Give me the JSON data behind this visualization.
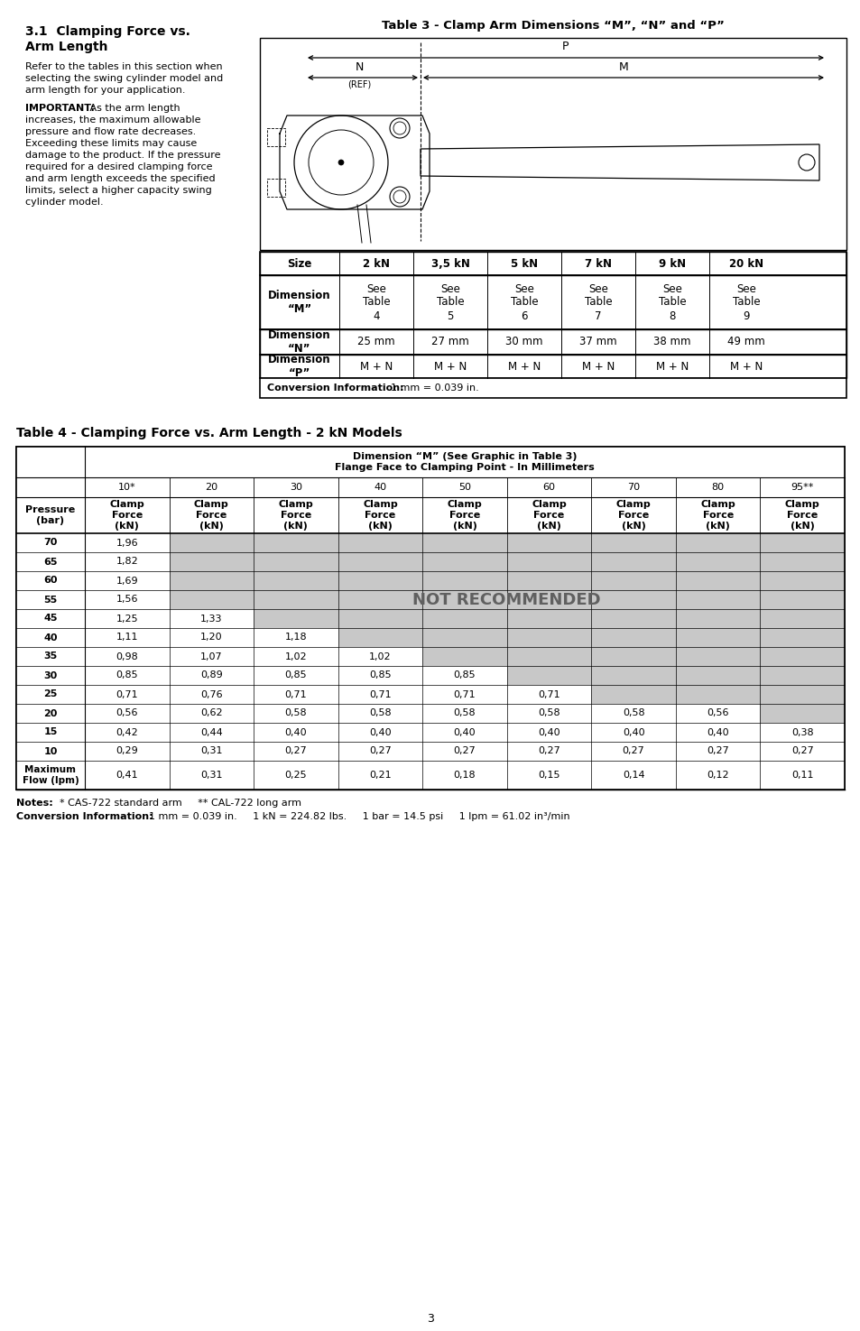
{
  "table3_title": "Table 3 - Clamp Arm Dimensions “M”, “N” and “P”",
  "table3_headers": [
    "Size",
    "2 kN",
    "3,5 kN",
    "5 kN",
    "7 kN",
    "9 kN",
    "20 kN"
  ],
  "table3_row1_label": "Dimension\n“M”",
  "table3_row1_data": [
    "See\nTable\n4",
    "See\nTable\n5",
    "See\nTable\n6",
    "See\nTable\n7",
    "See\nTable\n8",
    "See\nTable\n9"
  ],
  "table3_row2_label": "Dimension\n“N”",
  "table3_row2_data": [
    "25 mm",
    "27 mm",
    "30 mm",
    "37 mm",
    "38 mm",
    "49 mm"
  ],
  "table3_row3_label": "Dimension\n“P”",
  "table3_row3_data": [
    "M + N",
    "M + N",
    "M + N",
    "M + N",
    "M + N",
    "M + N"
  ],
  "table3_conv": "Conversion Information:  1 mm = 0.039 in.",
  "table4_title": "Table 4 - Clamping Force vs. Arm Length - 2 kN Models",
  "table4_dim_header_line1": "Dimension “M” (See Graphic in Table 3)",
  "table4_dim_header_line2": "Flange Face to Clamping Point - In Millimeters",
  "table4_col_headers": [
    "10*",
    "20",
    "30",
    "40",
    "50",
    "60",
    "70",
    "80",
    "95**"
  ],
  "table4_pressure_header": "Pressure\n(bar)",
  "table4_subheader": "Clamp\nForce\n(kN)",
  "table4_rows": [
    [
      "70",
      "1,96",
      "",
      "",
      "",
      "",
      "",
      "",
      "",
      ""
    ],
    [
      "65",
      "1,82",
      "",
      "",
      "",
      "",
      "",
      "",
      "",
      ""
    ],
    [
      "60",
      "1,69",
      "",
      "",
      "",
      "",
      "",
      "",
      "",
      ""
    ],
    [
      "55",
      "1,56",
      "",
      "",
      "",
      "",
      "",
      "",
      "",
      ""
    ],
    [
      "45",
      "1,25",
      "1,33",
      "",
      "",
      "",
      "",
      "",
      "",
      ""
    ],
    [
      "40",
      "1,11",
      "1,20",
      "1,18",
      "",
      "",
      "",
      "",
      "",
      ""
    ],
    [
      "35",
      "0,98",
      "1,07",
      "1,02",
      "1,02",
      "",
      "",
      "",
      "",
      ""
    ],
    [
      "30",
      "0,85",
      "0,89",
      "0,85",
      "0,85",
      "0,85",
      "",
      "",
      "",
      ""
    ],
    [
      "25",
      "0,71",
      "0,76",
      "0,71",
      "0,71",
      "0,71",
      "0,71",
      "",
      "",
      ""
    ],
    [
      "20",
      "0,56",
      "0,62",
      "0,58",
      "0,58",
      "0,58",
      "0,58",
      "0,58",
      "0,56",
      ""
    ],
    [
      "15",
      "0,42",
      "0,44",
      "0,40",
      "0,40",
      "0,40",
      "0,40",
      "0,40",
      "0,40",
      "0,38"
    ],
    [
      "10",
      "0,29",
      "0,31",
      "0,27",
      "0,27",
      "0,27",
      "0,27",
      "0,27",
      "0,27",
      "0,27"
    ]
  ],
  "table4_max_flow": [
    "Maximum\nFlow (lpm)",
    "0,41",
    "0,31",
    "0,25",
    "0,21",
    "0,18",
    "0,15",
    "0,14",
    "0,12",
    "0,11"
  ],
  "table4_notes": "Notes:    * CAS-722 standard arm     ** CAL-722 long arm",
  "table4_conv": "Conversion Information:   1 mm = 0.039 in.     1 kN = 224.82 lbs.     1 bar = 14.5 psi     1 lpm = 61.02 in³/min",
  "not_recommended_text": "NOT RECOMMENDED",
  "page_number": "3",
  "bg_color": "#ffffff",
  "not_rec_gray": "#c8c8c8"
}
